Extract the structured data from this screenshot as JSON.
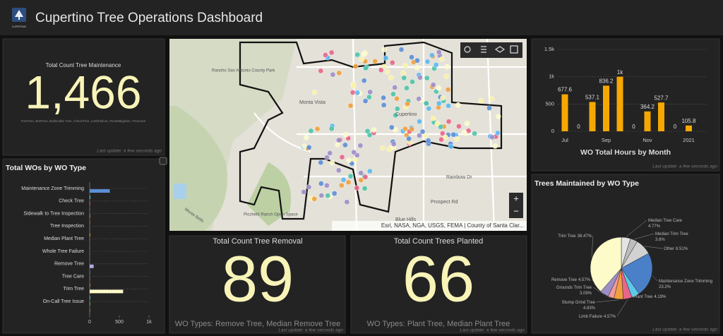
{
  "header": {
    "title": "Cupertino Tree Operations Dashboard",
    "logo_text": "CUPERTINO"
  },
  "maintenance": {
    "title": "Total Count Tree Maintenance",
    "value": "1,466",
    "subtitle": "TrimTree, BoltTree, BulkCable Tree, CheckTree, LimbFailure, RootMitigation, TreeCare",
    "last_update": "Last update: a few seconds ago"
  },
  "map": {
    "attribution": "Esri, NASA, NGA, USGS, FEMA | County of Santa Clar...",
    "zoom_in": "+",
    "zoom_out": "−",
    "places": [
      "Monta Vista",
      "Cupertino",
      "Rainbow Dr",
      "Prospect Rd",
      "Blue Hills",
      "Picchetti Ranch Open Space",
      "Rancho San Antonio County Park",
      "Monte Bello"
    ]
  },
  "removal": {
    "title": "Total Count Tree Removal",
    "value": "89",
    "subtitle": "WO Types: Remove Tree, Median Remove Tree",
    "last_update": "Last update: a few seconds ago"
  },
  "planted": {
    "title": "Total Count Trees Planted",
    "value": "66",
    "subtitle": "WO Types: Plant Tree, Median Plant Tree",
    "last_update": "Last update: a few seconds ago"
  },
  "chart_data": [
    {
      "type": "hbar",
      "title": "Total WOs by WO Type",
      "categories": [
        "Maintenance Zone Trimming",
        null,
        "Check Tree",
        null,
        "Sidewalk to Tree Inspection",
        null,
        "Tree Inspection",
        null,
        "Median Plant Tree",
        null,
        "Whole Tree Failure",
        null,
        "Remove Tree",
        null,
        "Tree Care",
        null,
        "Trim Tree",
        null,
        "On-Call Tree Issue",
        null
      ],
      "values": [
        340,
        12,
        8,
        2,
        8,
        5,
        3,
        10,
        2,
        3,
        2,
        2,
        67,
        5,
        4,
        8,
        564,
        10,
        8,
        5
      ],
      "colors": [
        "#5b8fd6",
        "#4dc4d9",
        "#e8668a",
        "#f39a9a",
        "#f0a040",
        "#f0a040",
        "#9d8ec8",
        "#f0a040",
        "#e8668a",
        "#4dc4d9",
        "#f39a9a",
        "#5b8fd6",
        "#b7a9dd",
        "#4dc4d9",
        "#f39a9a",
        "#f0a040",
        "#fdfbc9",
        "#4dc4d9",
        "#7ed957",
        "#f39a9a"
      ],
      "xlim": [
        0,
        1000
      ],
      "xticks": [
        0,
        500,
        {
          "value": 1000,
          "label": "1k"
        }
      ]
    },
    {
      "type": "bar",
      "title": "WO Total Hours by Month",
      "categories": [
        "Jul",
        null,
        null,
        "Sep",
        null,
        null,
        "Nov",
        null,
        null,
        "2021"
      ],
      "values": [
        677.6,
        0,
        537.1,
        836.2,
        1000,
        0,
        364.2,
        527.7,
        0,
        105.8
      ],
      "value_labels": [
        "677.6",
        "0",
        "537.1",
        "836.2",
        "1k",
        "0",
        "364.2",
        "527.7",
        "0",
        "105.8"
      ],
      "color": "#f5a800",
      "ylim": [
        0,
        1500
      ],
      "yticks": [
        0,
        500,
        {
          "value": 1000,
          "label": "1k"
        },
        {
          "value": 1500,
          "label": "1.5k"
        }
      ],
      "grid": true,
      "last_update": "Last update: a few seconds ago"
    },
    {
      "type": "pie",
      "title": "Trees Maintained by WO Type",
      "categories": [
        "Median Tree Care",
        "Median Trim Tree",
        "Other",
        "Maintenance Zone Trimming",
        "Plant Tree",
        "Limb Failure",
        "Stump Grind Tree",
        "Grounds Trim Tree",
        "Remove Tree",
        "Trim Tree"
      ],
      "values": [
        4.77,
        3.8,
        8.51,
        23.2,
        4.19,
        4.57,
        4.83,
        3.09,
        4.57,
        38.47
      ],
      "value_labels": [
        "4.77%",
        "3.8%",
        "8.51%",
        "23.2%",
        "4.19%",
        "4.57%",
        "4.83%",
        "3.09%",
        "4.57%",
        "38.47%"
      ],
      "colors": [
        "#e4e4e4",
        "#bdbdbd",
        "#d2d2d2",
        "#4a80c8",
        "#5bc8e8",
        "#e8668a",
        "#f0a040",
        "#f39a9a",
        "#9d8ec8",
        "#fdfbc9"
      ],
      "last_update": "Last update: a few seconds ago"
    }
  ]
}
